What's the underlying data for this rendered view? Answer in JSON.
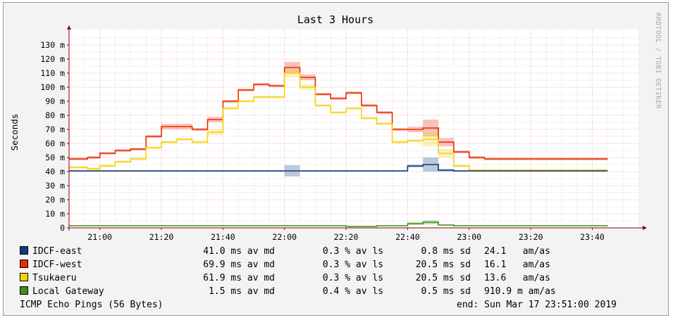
{
  "chart_data": {
    "type": "line",
    "title": "Last 3 Hours",
    "ylabel": "Seconds",
    "watermark": "RRDTOOL / TOBI OETIKER",
    "y_tick_labels": [
      "0",
      "10 m",
      "20 m",
      "30 m",
      "40 m",
      "50 m",
      "60 m",
      "70 m",
      "80 m",
      "90 m",
      "100 m",
      "110 m",
      "120 m",
      "130 m"
    ],
    "y_tick_values": [
      0,
      10,
      20,
      30,
      40,
      50,
      60,
      70,
      80,
      90,
      100,
      110,
      120,
      130
    ],
    "x_tick_labels": [
      "21:00",
      "21:20",
      "21:40",
      "22:00",
      "22:20",
      "22:40",
      "23:00",
      "23:20",
      "23:40"
    ],
    "x_tick_minutes": [
      0,
      20,
      40,
      60,
      80,
      100,
      120,
      140,
      160
    ],
    "x_range_minutes": [
      -10,
      175
    ],
    "ylim": [
      0,
      138
    ],
    "grid": true,
    "colors": {
      "IDCF-east": "#0b3c7e",
      "IDCF-west": "#ea2a06",
      "Tsukaeru": "#f5d20a",
      "Local Gateway": "#3f8f1a",
      "grid_major": "#f4a6a6",
      "grid_minor": "#d8d8d8",
      "axis": "#8b0000"
    },
    "step_times_minutes": [
      -10,
      -4,
      0,
      5,
      10,
      15,
      20,
      25,
      30,
      35,
      40,
      45,
      50,
      55,
      60,
      65,
      70,
      75,
      80,
      85,
      90,
      95,
      100,
      105,
      110,
      115,
      120,
      125,
      130,
      135,
      140,
      145,
      150,
      155,
      160,
      165
    ],
    "series": [
      {
        "name": "IDCF-west",
        "values": [
          49,
          50,
          53,
          55,
          56,
          65,
          72,
          72,
          70,
          77,
          90,
          98,
          102,
          101,
          114,
          107,
          95,
          92,
          96,
          87,
          82,
          70,
          70,
          71,
          61,
          54,
          50,
          49,
          49,
          49,
          49,
          49,
          49,
          49,
          49,
          49
        ],
        "band": [
          1,
          1,
          1,
          1,
          1,
          1,
          2,
          2,
          1,
          2,
          1,
          1,
          1,
          1,
          4,
          2,
          1,
          1,
          1,
          1,
          1,
          1,
          2,
          6,
          3,
          1,
          1,
          1,
          1,
          1,
          1,
          1,
          1,
          1,
          1,
          1
        ]
      },
      {
        "name": "Tsukaeru",
        "values": [
          43,
          42,
          44,
          47,
          49,
          57,
          61,
          63,
          61,
          68,
          85,
          90,
          93,
          93,
          110,
          100,
          87,
          82,
          85,
          78,
          74,
          61,
          62,
          63,
          53,
          44,
          41,
          41,
          41,
          41,
          41,
          41,
          41,
          41,
          41,
          41
        ],
        "band": [
          1,
          1,
          1,
          1,
          1,
          1,
          1,
          1,
          1,
          2,
          1,
          1,
          1,
          1,
          3,
          2,
          1,
          1,
          1,
          1,
          1,
          1,
          1,
          5,
          3,
          1,
          1,
          1,
          1,
          1,
          1,
          1,
          1,
          1,
          1,
          1
        ]
      },
      {
        "name": "IDCF-east",
        "values": [
          40.5,
          40.5,
          40.5,
          40.5,
          40.5,
          40.5,
          40.5,
          40.5,
          40.5,
          40.5,
          40.5,
          40.5,
          40.5,
          40.5,
          40.5,
          40.5,
          40.5,
          40.5,
          40.5,
          40.5,
          40.5,
          40.5,
          44,
          45,
          41,
          40.5,
          40.5,
          40.5,
          40.5,
          40.5,
          40.5,
          40.5,
          40.5,
          40.5,
          40.5,
          40.5
        ],
        "band": [
          0.5,
          0.5,
          0.5,
          0.5,
          0.5,
          0.5,
          0.5,
          0.5,
          0.5,
          0.5,
          0.5,
          0.5,
          0.5,
          0.5,
          4,
          0.5,
          0.5,
          0.5,
          0.5,
          0.5,
          0.5,
          0.5,
          1,
          5,
          1,
          0.5,
          0.5,
          0.5,
          0.5,
          0.5,
          0.5,
          0.5,
          0.5,
          0.5,
          0.5,
          0.5
        ]
      },
      {
        "name": "Local Gateway",
        "values": [
          1.5,
          1.5,
          1.5,
          1.5,
          1.5,
          1.5,
          1.5,
          1.5,
          1.5,
          1.5,
          1.5,
          1.5,
          1.5,
          1.5,
          1.5,
          1.5,
          1.5,
          1.5,
          1,
          1,
          1.5,
          1.5,
          3,
          4,
          2,
          1.5,
          1.5,
          1.5,
          1.5,
          1.5,
          1.5,
          1.5,
          1.5,
          1.5,
          1.5,
          1.5
        ],
        "band": [
          0.3,
          0.3,
          0.3,
          0.3,
          0.3,
          0.3,
          0.3,
          0.3,
          0.3,
          0.3,
          0.3,
          0.3,
          0.3,
          0.3,
          0.3,
          0.3,
          0.3,
          0.3,
          0.3,
          0.3,
          0.3,
          0.3,
          1,
          1.5,
          0.5,
          0.3,
          0.3,
          0.3,
          0.3,
          0.3,
          0.3,
          0.3,
          0.3,
          0.3,
          0.3,
          0.3
        ]
      }
    ]
  },
  "legend": [
    {
      "name": "IDCF-east",
      "color": "#0b3c7e",
      "av_md": "41.0 ms av md",
      "av_ls": "0.3 % av ls",
      "sd": "0.8 ms sd",
      "am_as": "24.1   am/as"
    },
    {
      "name": "IDCF-west",
      "color": "#ea2a06",
      "av_md": "69.9 ms av md",
      "av_ls": "0.3 % av ls",
      "sd": "20.5 ms sd",
      "am_as": "16.1   am/as"
    },
    {
      "name": "Tsukaeru",
      "color": "#f5d20a",
      "av_md": "61.9 ms av md",
      "av_ls": "0.3 % av ls",
      "sd": "20.5 ms sd",
      "am_as": "13.6   am/as"
    },
    {
      "name": "Local Gateway",
      "color": "#3f8f1a",
      "av_md": "1.5 ms av md",
      "av_ls": "0.4 % av ls",
      "sd": "0.5 ms sd",
      "am_as": "910.9 m am/as"
    }
  ],
  "footer": {
    "left": "ICMP Echo Pings (56 Bytes)",
    "right": "end: Sun Mar 17 23:51:00 2019"
  }
}
